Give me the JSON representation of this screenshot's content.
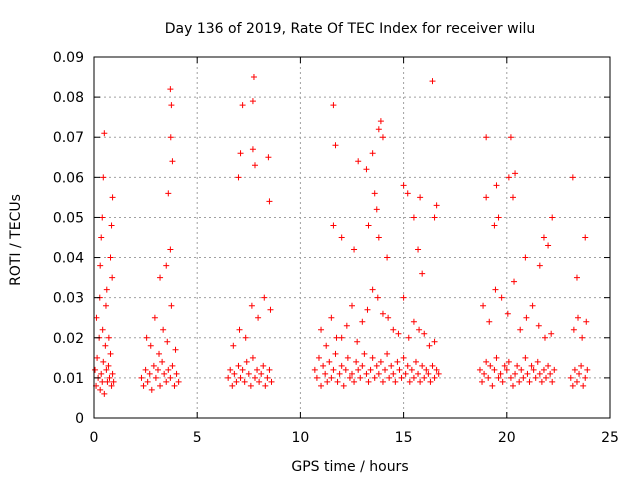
{
  "chart_data": {
    "type": "scatter",
    "title": "Day 136 of 2019, Rate Of TEC Index for receiver wilu",
    "xlabel": "GPS time / hours",
    "ylabel": "ROTI / TECUs",
    "xlim": [
      0,
      25
    ],
    "ylim": [
      0,
      0.09
    ],
    "x_ticks": [
      0,
      5,
      10,
      15,
      20,
      25
    ],
    "x_tick_labels": [
      "0",
      "5",
      "10",
      "15",
      "20",
      "25"
    ],
    "y_ticks": [
      0,
      0.01,
      0.02,
      0.03,
      0.04,
      0.05,
      0.06,
      0.07,
      0.08,
      0.09
    ],
    "y_tick_labels": [
      "0",
      "0.01",
      "0.02",
      "0.03",
      "0.04",
      "0.05",
      "0.06",
      "0.07",
      "0.08",
      "0.09"
    ],
    "grid": true,
    "marker": "+",
    "color": "#ff0000",
    "series": [
      {
        "name": "ROTI",
        "x": [
          0.05,
          0.1,
          0.15,
          0.2,
          0.25,
          0.3,
          0.35,
          0.4,
          0.45,
          0.5,
          0.55,
          0.6,
          0.65,
          0.7,
          0.75,
          0.8,
          0.85,
          0.9,
          0.95,
          0.12,
          0.28,
          0.42,
          0.58,
          0.72,
          0.88,
          0.3,
          0.4,
          0.45,
          0.5,
          0.85,
          0.9,
          0.35,
          0.62,
          0.8,
          2.3,
          2.4,
          2.5,
          2.6,
          2.7,
          2.8,
          2.9,
          3.0,
          3.1,
          3.2,
          3.3,
          3.4,
          3.5,
          3.6,
          3.7,
          3.8,
          3.9,
          4.0,
          4.1,
          2.55,
          2.75,
          2.95,
          3.15,
          3.35,
          3.55,
          3.75,
          3.95,
          3.2,
          3.5,
          3.7,
          3.7,
          3.75,
          3.72,
          3.8,
          3.6,
          6.5,
          6.6,
          6.7,
          6.8,
          6.9,
          7.0,
          7.1,
          7.2,
          7.3,
          7.4,
          7.5,
          7.6,
          7.7,
          7.8,
          7.9,
          8.0,
          8.1,
          8.2,
          8.3,
          8.4,
          8.5,
          8.6,
          6.75,
          7.05,
          7.35,
          7.65,
          7.95,
          8.25,
          8.55,
          7.0,
          7.1,
          7.2,
          7.7,
          7.75,
          7.7,
          7.8,
          8.45,
          8.5,
          10.7,
          10.8,
          10.9,
          11.0,
          11.1,
          11.2,
          11.3,
          11.4,
          11.5,
          11.6,
          11.7,
          11.8,
          11.9,
          12.0,
          12.1,
          12.2,
          12.3,
          12.4,
          12.5,
          12.6,
          12.7,
          12.8,
          12.9,
          13.0,
          13.1,
          13.2,
          13.3,
          13.4,
          13.5,
          13.6,
          13.7,
          13.8,
          13.9,
          14.0,
          14.1,
          14.2,
          14.3,
          14.4,
          14.5,
          14.6,
          14.7,
          14.8,
          14.9,
          15.0,
          15.1,
          15.2,
          15.3,
          15.4,
          15.5,
          15.6,
          15.7,
          15.8,
          15.9,
          16.0,
          16.1,
          16.2,
          16.3,
          16.4,
          16.5,
          16.6,
          16.7,
          11.0,
          11.5,
          12.0,
          12.5,
          13.0,
          13.5,
          14.0,
          14.5,
          15.0,
          15.5,
          16.0,
          16.5,
          11.25,
          11.75,
          12.25,
          12.75,
          13.25,
          13.75,
          14.25,
          14.75,
          15.25,
          15.75,
          16.25,
          11.6,
          11.7,
          12.8,
          13.2,
          13.5,
          13.8,
          13.9,
          14.0,
          13.6,
          13.7,
          15.0,
          15.2,
          15.5,
          15.8,
          16.4,
          16.5,
          16.6,
          12.0,
          12.6,
          13.3,
          14.2,
          15.7,
          15.9,
          11.6,
          13.8,
          18.7,
          18.8,
          18.9,
          19.0,
          19.1,
          19.2,
          19.3,
          19.4,
          19.5,
          19.6,
          19.7,
          19.8,
          19.9,
          20.0,
          20.1,
          20.2,
          20.3,
          20.4,
          20.5,
          20.6,
          20.7,
          20.8,
          20.9,
          21.0,
          21.1,
          21.2,
          21.3,
          21.4,
          21.5,
          21.6,
          21.7,
          21.8,
          21.9,
          22.0,
          22.1,
          22.2,
          22.3,
          18.85,
          19.15,
          19.45,
          19.75,
          20.05,
          20.35,
          20.65,
          20.95,
          21.25,
          21.55,
          21.85,
          22.15,
          19.0,
          19.4,
          19.6,
          20.2,
          20.4,
          20.9,
          21.6,
          21.8,
          22.0,
          22.2,
          19.0,
          19.5,
          20.1,
          20.3,
          23.1,
          23.2,
          23.3,
          23.4,
          23.5,
          23.6,
          23.7,
          23.8,
          23.9,
          23.25,
          23.45,
          23.65,
          23.85,
          23.4,
          23.8,
          23.2
        ],
        "y": [
          0.012,
          0.008,
          0.015,
          0.01,
          0.02,
          0.007,
          0.011,
          0.009,
          0.014,
          0.006,
          0.018,
          0.012,
          0.009,
          0.013,
          0.01,
          0.016,
          0.008,
          0.011,
          0.009,
          0.025,
          0.03,
          0.022,
          0.028,
          0.02,
          0.035,
          0.038,
          0.05,
          0.06,
          0.071,
          0.048,
          0.055,
          0.045,
          0.032,
          0.04,
          0.01,
          0.008,
          0.012,
          0.009,
          0.011,
          0.007,
          0.013,
          0.01,
          0.012,
          0.008,
          0.014,
          0.011,
          0.009,
          0.012,
          0.01,
          0.013,
          0.008,
          0.011,
          0.009,
          0.02,
          0.018,
          0.025,
          0.016,
          0.022,
          0.019,
          0.028,
          0.017,
          0.035,
          0.038,
          0.042,
          0.082,
          0.078,
          0.07,
          0.064,
          0.056,
          0.01,
          0.012,
          0.008,
          0.011,
          0.009,
          0.013,
          0.01,
          0.012,
          0.009,
          0.014,
          0.011,
          0.008,
          0.015,
          0.01,
          0.012,
          0.009,
          0.011,
          0.013,
          0.008,
          0.01,
          0.012,
          0.009,
          0.018,
          0.022,
          0.02,
          0.028,
          0.025,
          0.03,
          0.027,
          0.06,
          0.066,
          0.078,
          0.079,
          0.085,
          0.067,
          0.063,
          0.065,
          0.054,
          0.012,
          0.01,
          0.015,
          0.008,
          0.013,
          0.011,
          0.009,
          0.014,
          0.01,
          0.012,
          0.016,
          0.009,
          0.011,
          0.013,
          0.008,
          0.012,
          0.015,
          0.01,
          0.011,
          0.009,
          0.014,
          0.012,
          0.01,
          0.013,
          0.016,
          0.011,
          0.009,
          0.012,
          0.015,
          0.01,
          0.013,
          0.011,
          0.014,
          0.009,
          0.012,
          0.016,
          0.01,
          0.013,
          0.011,
          0.009,
          0.014,
          0.012,
          0.01,
          0.015,
          0.011,
          0.013,
          0.009,
          0.012,
          0.01,
          0.014,
          0.011,
          0.009,
          0.013,
          0.01,
          0.012,
          0.011,
          0.009,
          0.013,
          0.01,
          0.012,
          0.011,
          0.022,
          0.025,
          0.02,
          0.028,
          0.024,
          0.032,
          0.026,
          0.022,
          0.03,
          0.024,
          0.021,
          0.019,
          0.018,
          0.02,
          0.023,
          0.019,
          0.027,
          0.03,
          0.025,
          0.021,
          0.02,
          0.022,
          0.018,
          0.078,
          0.068,
          0.064,
          0.062,
          0.066,
          0.072,
          0.074,
          0.07,
          0.056,
          0.052,
          0.058,
          0.056,
          0.05,
          0.055,
          0.084,
          0.05,
          0.053,
          0.045,
          0.042,
          0.048,
          0.04,
          0.042,
          0.036,
          0.048,
          0.045,
          0.012,
          0.009,
          0.011,
          0.014,
          0.01,
          0.013,
          0.008,
          0.012,
          0.015,
          0.01,
          0.011,
          0.009,
          0.013,
          0.012,
          0.014,
          0.01,
          0.008,
          0.011,
          0.013,
          0.009,
          0.012,
          0.01,
          0.015,
          0.011,
          0.009,
          0.013,
          0.012,
          0.01,
          0.014,
          0.011,
          0.009,
          0.012,
          0.01,
          0.013,
          0.011,
          0.009,
          0.012,
          0.028,
          0.024,
          0.032,
          0.03,
          0.026,
          0.034,
          0.022,
          0.025,
          0.028,
          0.023,
          0.02,
          0.021,
          0.055,
          0.048,
          0.05,
          0.07,
          0.061,
          0.04,
          0.038,
          0.045,
          0.043,
          0.05,
          0.07,
          0.058,
          0.06,
          0.055,
          0.01,
          0.008,
          0.012,
          0.009,
          0.011,
          0.013,
          0.008,
          0.01,
          0.012,
          0.022,
          0.025,
          0.02,
          0.024,
          0.035,
          0.045,
          0.06
        ]
      }
    ]
  }
}
